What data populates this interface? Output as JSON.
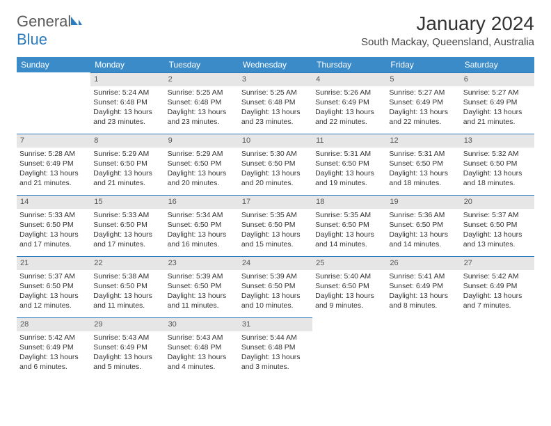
{
  "logo": {
    "word1": "General",
    "word2": "Blue"
  },
  "title": "January 2024",
  "location": "South Mackay, Queensland, Australia",
  "colors": {
    "header_bg": "#3b8bc9",
    "header_text": "#ffffff",
    "daynum_bg": "#e6e6e6",
    "daynum_border": "#2c7bbf",
    "logo_gray": "#5a5a5a",
    "logo_blue": "#2c7bbf"
  },
  "weekdays": [
    "Sunday",
    "Monday",
    "Tuesday",
    "Wednesday",
    "Thursday",
    "Friday",
    "Saturday"
  ],
  "weeks": [
    [
      {
        "day": "",
        "sunrise": "",
        "sunset": "",
        "daylight": ""
      },
      {
        "day": "1",
        "sunrise": "Sunrise: 5:24 AM",
        "sunset": "Sunset: 6:48 PM",
        "daylight": "Daylight: 13 hours and 23 minutes."
      },
      {
        "day": "2",
        "sunrise": "Sunrise: 5:25 AM",
        "sunset": "Sunset: 6:48 PM",
        "daylight": "Daylight: 13 hours and 23 minutes."
      },
      {
        "day": "3",
        "sunrise": "Sunrise: 5:25 AM",
        "sunset": "Sunset: 6:48 PM",
        "daylight": "Daylight: 13 hours and 23 minutes."
      },
      {
        "day": "4",
        "sunrise": "Sunrise: 5:26 AM",
        "sunset": "Sunset: 6:49 PM",
        "daylight": "Daylight: 13 hours and 22 minutes."
      },
      {
        "day": "5",
        "sunrise": "Sunrise: 5:27 AM",
        "sunset": "Sunset: 6:49 PM",
        "daylight": "Daylight: 13 hours and 22 minutes."
      },
      {
        "day": "6",
        "sunrise": "Sunrise: 5:27 AM",
        "sunset": "Sunset: 6:49 PM",
        "daylight": "Daylight: 13 hours and 21 minutes."
      }
    ],
    [
      {
        "day": "7",
        "sunrise": "Sunrise: 5:28 AM",
        "sunset": "Sunset: 6:49 PM",
        "daylight": "Daylight: 13 hours and 21 minutes."
      },
      {
        "day": "8",
        "sunrise": "Sunrise: 5:29 AM",
        "sunset": "Sunset: 6:50 PM",
        "daylight": "Daylight: 13 hours and 21 minutes."
      },
      {
        "day": "9",
        "sunrise": "Sunrise: 5:29 AM",
        "sunset": "Sunset: 6:50 PM",
        "daylight": "Daylight: 13 hours and 20 minutes."
      },
      {
        "day": "10",
        "sunrise": "Sunrise: 5:30 AM",
        "sunset": "Sunset: 6:50 PM",
        "daylight": "Daylight: 13 hours and 20 minutes."
      },
      {
        "day": "11",
        "sunrise": "Sunrise: 5:31 AM",
        "sunset": "Sunset: 6:50 PM",
        "daylight": "Daylight: 13 hours and 19 minutes."
      },
      {
        "day": "12",
        "sunrise": "Sunrise: 5:31 AM",
        "sunset": "Sunset: 6:50 PM",
        "daylight": "Daylight: 13 hours and 18 minutes."
      },
      {
        "day": "13",
        "sunrise": "Sunrise: 5:32 AM",
        "sunset": "Sunset: 6:50 PM",
        "daylight": "Daylight: 13 hours and 18 minutes."
      }
    ],
    [
      {
        "day": "14",
        "sunrise": "Sunrise: 5:33 AM",
        "sunset": "Sunset: 6:50 PM",
        "daylight": "Daylight: 13 hours and 17 minutes."
      },
      {
        "day": "15",
        "sunrise": "Sunrise: 5:33 AM",
        "sunset": "Sunset: 6:50 PM",
        "daylight": "Daylight: 13 hours and 17 minutes."
      },
      {
        "day": "16",
        "sunrise": "Sunrise: 5:34 AM",
        "sunset": "Sunset: 6:50 PM",
        "daylight": "Daylight: 13 hours and 16 minutes."
      },
      {
        "day": "17",
        "sunrise": "Sunrise: 5:35 AM",
        "sunset": "Sunset: 6:50 PM",
        "daylight": "Daylight: 13 hours and 15 minutes."
      },
      {
        "day": "18",
        "sunrise": "Sunrise: 5:35 AM",
        "sunset": "Sunset: 6:50 PM",
        "daylight": "Daylight: 13 hours and 14 minutes."
      },
      {
        "day": "19",
        "sunrise": "Sunrise: 5:36 AM",
        "sunset": "Sunset: 6:50 PM",
        "daylight": "Daylight: 13 hours and 14 minutes."
      },
      {
        "day": "20",
        "sunrise": "Sunrise: 5:37 AM",
        "sunset": "Sunset: 6:50 PM",
        "daylight": "Daylight: 13 hours and 13 minutes."
      }
    ],
    [
      {
        "day": "21",
        "sunrise": "Sunrise: 5:37 AM",
        "sunset": "Sunset: 6:50 PM",
        "daylight": "Daylight: 13 hours and 12 minutes."
      },
      {
        "day": "22",
        "sunrise": "Sunrise: 5:38 AM",
        "sunset": "Sunset: 6:50 PM",
        "daylight": "Daylight: 13 hours and 11 minutes."
      },
      {
        "day": "23",
        "sunrise": "Sunrise: 5:39 AM",
        "sunset": "Sunset: 6:50 PM",
        "daylight": "Daylight: 13 hours and 11 minutes."
      },
      {
        "day": "24",
        "sunrise": "Sunrise: 5:39 AM",
        "sunset": "Sunset: 6:50 PM",
        "daylight": "Daylight: 13 hours and 10 minutes."
      },
      {
        "day": "25",
        "sunrise": "Sunrise: 5:40 AM",
        "sunset": "Sunset: 6:50 PM",
        "daylight": "Daylight: 13 hours and 9 minutes."
      },
      {
        "day": "26",
        "sunrise": "Sunrise: 5:41 AM",
        "sunset": "Sunset: 6:49 PM",
        "daylight": "Daylight: 13 hours and 8 minutes."
      },
      {
        "day": "27",
        "sunrise": "Sunrise: 5:42 AM",
        "sunset": "Sunset: 6:49 PM",
        "daylight": "Daylight: 13 hours and 7 minutes."
      }
    ],
    [
      {
        "day": "28",
        "sunrise": "Sunrise: 5:42 AM",
        "sunset": "Sunset: 6:49 PM",
        "daylight": "Daylight: 13 hours and 6 minutes."
      },
      {
        "day": "29",
        "sunrise": "Sunrise: 5:43 AM",
        "sunset": "Sunset: 6:49 PM",
        "daylight": "Daylight: 13 hours and 5 minutes."
      },
      {
        "day": "30",
        "sunrise": "Sunrise: 5:43 AM",
        "sunset": "Sunset: 6:48 PM",
        "daylight": "Daylight: 13 hours and 4 minutes."
      },
      {
        "day": "31",
        "sunrise": "Sunrise: 5:44 AM",
        "sunset": "Sunset: 6:48 PM",
        "daylight": "Daylight: 13 hours and 3 minutes."
      },
      {
        "day": "",
        "sunrise": "",
        "sunset": "",
        "daylight": ""
      },
      {
        "day": "",
        "sunrise": "",
        "sunset": "",
        "daylight": ""
      },
      {
        "day": "",
        "sunrise": "",
        "sunset": "",
        "daylight": ""
      }
    ]
  ]
}
